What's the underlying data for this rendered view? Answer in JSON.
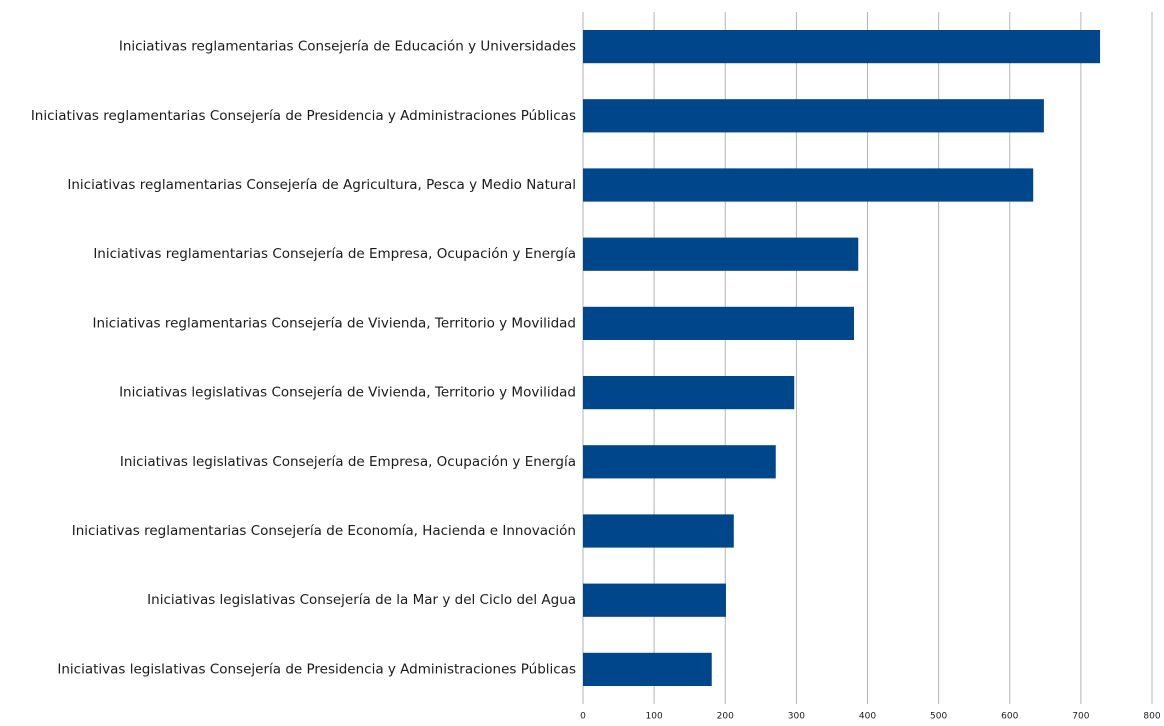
{
  "chart_data": {
    "type": "hbar",
    "categories": [
      "Iniciativas reglamentarias Consejería de Educación y Universidades",
      "Iniciativas reglamentarias Consejería de Presidencia y Administraciones Públicas",
      "Iniciativas reglamentarias Consejería de Agricultura, Pesca y Medio Natural",
      "Iniciativas reglamentarias Consejería de Empresa, Ocupación y Energía",
      "Iniciativas reglamentarias Consejería de Vivienda, Territorio y Movilidad",
      "Iniciativas legislativas Consejería de Vivienda, Territorio y Movilidad",
      "Iniciativas legislativas Consejería de Empresa, Ocupación y Energía",
      "Iniciativas reglamentarias Consejería de Economía, Hacienda e Innovación",
      "Iniciativas legislativas Consejería de la Mar y del Ciclo del Agua",
      "Iniciativas legislativas Consejería de Presidencia y Administraciones Públicas"
    ],
    "values": [
      727,
      648,
      633,
      387,
      381,
      297,
      271,
      212,
      201,
      181
    ],
    "color": "#00468b",
    "xlim": [
      0,
      800
    ],
    "xticks": [
      0,
      100,
      200,
      300,
      400,
      500,
      600,
      700,
      800
    ],
    "grid": true
  }
}
